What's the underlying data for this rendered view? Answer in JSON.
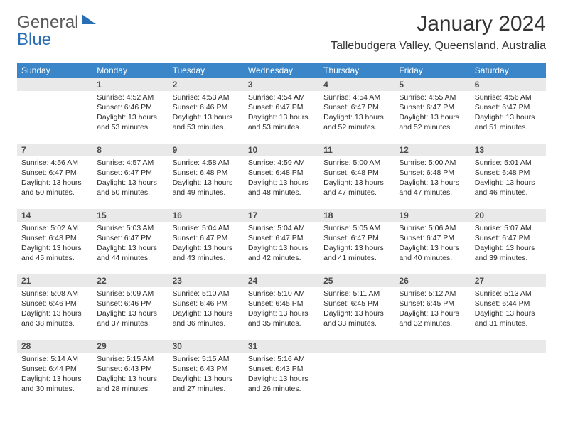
{
  "brand": {
    "word_a": "General",
    "word_b": "Blue",
    "color_a": "#5b5b5b",
    "color_b": "#2a6fb6",
    "triangle_fill": "#2a6fb6"
  },
  "header": {
    "title": "January 2024",
    "subtitle": "Tallebudgera Valley, Queensland, Australia"
  },
  "colors": {
    "header_row_bg": "#3a86c8",
    "header_row_text": "#ffffff",
    "daynum_bg": "#e9e9e9",
    "daynum_text": "#4a4a4a",
    "body_text": "#2b2b2b",
    "page_bg": "#ffffff"
  },
  "weekdays": [
    "Sunday",
    "Monday",
    "Tuesday",
    "Wednesday",
    "Thursday",
    "Friday",
    "Saturday"
  ],
  "weeks": [
    [
      {
        "n": "",
        "sunrise": "",
        "sunset": "",
        "daylight_a": "",
        "daylight_b": ""
      },
      {
        "n": "1",
        "sunrise": "Sunrise: 4:52 AM",
        "sunset": "Sunset: 6:46 PM",
        "daylight_a": "Daylight: 13 hours",
        "daylight_b": "and 53 minutes."
      },
      {
        "n": "2",
        "sunrise": "Sunrise: 4:53 AM",
        "sunset": "Sunset: 6:46 PM",
        "daylight_a": "Daylight: 13 hours",
        "daylight_b": "and 53 minutes."
      },
      {
        "n": "3",
        "sunrise": "Sunrise: 4:54 AM",
        "sunset": "Sunset: 6:47 PM",
        "daylight_a": "Daylight: 13 hours",
        "daylight_b": "and 53 minutes."
      },
      {
        "n": "4",
        "sunrise": "Sunrise: 4:54 AM",
        "sunset": "Sunset: 6:47 PM",
        "daylight_a": "Daylight: 13 hours",
        "daylight_b": "and 52 minutes."
      },
      {
        "n": "5",
        "sunrise": "Sunrise: 4:55 AM",
        "sunset": "Sunset: 6:47 PM",
        "daylight_a": "Daylight: 13 hours",
        "daylight_b": "and 52 minutes."
      },
      {
        "n": "6",
        "sunrise": "Sunrise: 4:56 AM",
        "sunset": "Sunset: 6:47 PM",
        "daylight_a": "Daylight: 13 hours",
        "daylight_b": "and 51 minutes."
      }
    ],
    [
      {
        "n": "7",
        "sunrise": "Sunrise: 4:56 AM",
        "sunset": "Sunset: 6:47 PM",
        "daylight_a": "Daylight: 13 hours",
        "daylight_b": "and 50 minutes."
      },
      {
        "n": "8",
        "sunrise": "Sunrise: 4:57 AM",
        "sunset": "Sunset: 6:47 PM",
        "daylight_a": "Daylight: 13 hours",
        "daylight_b": "and 50 minutes."
      },
      {
        "n": "9",
        "sunrise": "Sunrise: 4:58 AM",
        "sunset": "Sunset: 6:48 PM",
        "daylight_a": "Daylight: 13 hours",
        "daylight_b": "and 49 minutes."
      },
      {
        "n": "10",
        "sunrise": "Sunrise: 4:59 AM",
        "sunset": "Sunset: 6:48 PM",
        "daylight_a": "Daylight: 13 hours",
        "daylight_b": "and 48 minutes."
      },
      {
        "n": "11",
        "sunrise": "Sunrise: 5:00 AM",
        "sunset": "Sunset: 6:48 PM",
        "daylight_a": "Daylight: 13 hours",
        "daylight_b": "and 47 minutes."
      },
      {
        "n": "12",
        "sunrise": "Sunrise: 5:00 AM",
        "sunset": "Sunset: 6:48 PM",
        "daylight_a": "Daylight: 13 hours",
        "daylight_b": "and 47 minutes."
      },
      {
        "n": "13",
        "sunrise": "Sunrise: 5:01 AM",
        "sunset": "Sunset: 6:48 PM",
        "daylight_a": "Daylight: 13 hours",
        "daylight_b": "and 46 minutes."
      }
    ],
    [
      {
        "n": "14",
        "sunrise": "Sunrise: 5:02 AM",
        "sunset": "Sunset: 6:48 PM",
        "daylight_a": "Daylight: 13 hours",
        "daylight_b": "and 45 minutes."
      },
      {
        "n": "15",
        "sunrise": "Sunrise: 5:03 AM",
        "sunset": "Sunset: 6:47 PM",
        "daylight_a": "Daylight: 13 hours",
        "daylight_b": "and 44 minutes."
      },
      {
        "n": "16",
        "sunrise": "Sunrise: 5:04 AM",
        "sunset": "Sunset: 6:47 PM",
        "daylight_a": "Daylight: 13 hours",
        "daylight_b": "and 43 minutes."
      },
      {
        "n": "17",
        "sunrise": "Sunrise: 5:04 AM",
        "sunset": "Sunset: 6:47 PM",
        "daylight_a": "Daylight: 13 hours",
        "daylight_b": "and 42 minutes."
      },
      {
        "n": "18",
        "sunrise": "Sunrise: 5:05 AM",
        "sunset": "Sunset: 6:47 PM",
        "daylight_a": "Daylight: 13 hours",
        "daylight_b": "and 41 minutes."
      },
      {
        "n": "19",
        "sunrise": "Sunrise: 5:06 AM",
        "sunset": "Sunset: 6:47 PM",
        "daylight_a": "Daylight: 13 hours",
        "daylight_b": "and 40 minutes."
      },
      {
        "n": "20",
        "sunrise": "Sunrise: 5:07 AM",
        "sunset": "Sunset: 6:47 PM",
        "daylight_a": "Daylight: 13 hours",
        "daylight_b": "and 39 minutes."
      }
    ],
    [
      {
        "n": "21",
        "sunrise": "Sunrise: 5:08 AM",
        "sunset": "Sunset: 6:46 PM",
        "daylight_a": "Daylight: 13 hours",
        "daylight_b": "and 38 minutes."
      },
      {
        "n": "22",
        "sunrise": "Sunrise: 5:09 AM",
        "sunset": "Sunset: 6:46 PM",
        "daylight_a": "Daylight: 13 hours",
        "daylight_b": "and 37 minutes."
      },
      {
        "n": "23",
        "sunrise": "Sunrise: 5:10 AM",
        "sunset": "Sunset: 6:46 PM",
        "daylight_a": "Daylight: 13 hours",
        "daylight_b": "and 36 minutes."
      },
      {
        "n": "24",
        "sunrise": "Sunrise: 5:10 AM",
        "sunset": "Sunset: 6:45 PM",
        "daylight_a": "Daylight: 13 hours",
        "daylight_b": "and 35 minutes."
      },
      {
        "n": "25",
        "sunrise": "Sunrise: 5:11 AM",
        "sunset": "Sunset: 6:45 PM",
        "daylight_a": "Daylight: 13 hours",
        "daylight_b": "and 33 minutes."
      },
      {
        "n": "26",
        "sunrise": "Sunrise: 5:12 AM",
        "sunset": "Sunset: 6:45 PM",
        "daylight_a": "Daylight: 13 hours",
        "daylight_b": "and 32 minutes."
      },
      {
        "n": "27",
        "sunrise": "Sunrise: 5:13 AM",
        "sunset": "Sunset: 6:44 PM",
        "daylight_a": "Daylight: 13 hours",
        "daylight_b": "and 31 minutes."
      }
    ],
    [
      {
        "n": "28",
        "sunrise": "Sunrise: 5:14 AM",
        "sunset": "Sunset: 6:44 PM",
        "daylight_a": "Daylight: 13 hours",
        "daylight_b": "and 30 minutes."
      },
      {
        "n": "29",
        "sunrise": "Sunrise: 5:15 AM",
        "sunset": "Sunset: 6:43 PM",
        "daylight_a": "Daylight: 13 hours",
        "daylight_b": "and 28 minutes."
      },
      {
        "n": "30",
        "sunrise": "Sunrise: 5:15 AM",
        "sunset": "Sunset: 6:43 PM",
        "daylight_a": "Daylight: 13 hours",
        "daylight_b": "and 27 minutes."
      },
      {
        "n": "31",
        "sunrise": "Sunrise: 5:16 AM",
        "sunset": "Sunset: 6:43 PM",
        "daylight_a": "Daylight: 13 hours",
        "daylight_b": "and 26 minutes."
      },
      {
        "n": "",
        "sunrise": "",
        "sunset": "",
        "daylight_a": "",
        "daylight_b": ""
      },
      {
        "n": "",
        "sunrise": "",
        "sunset": "",
        "daylight_a": "",
        "daylight_b": ""
      },
      {
        "n": "",
        "sunrise": "",
        "sunset": "",
        "daylight_a": "",
        "daylight_b": ""
      }
    ]
  ]
}
